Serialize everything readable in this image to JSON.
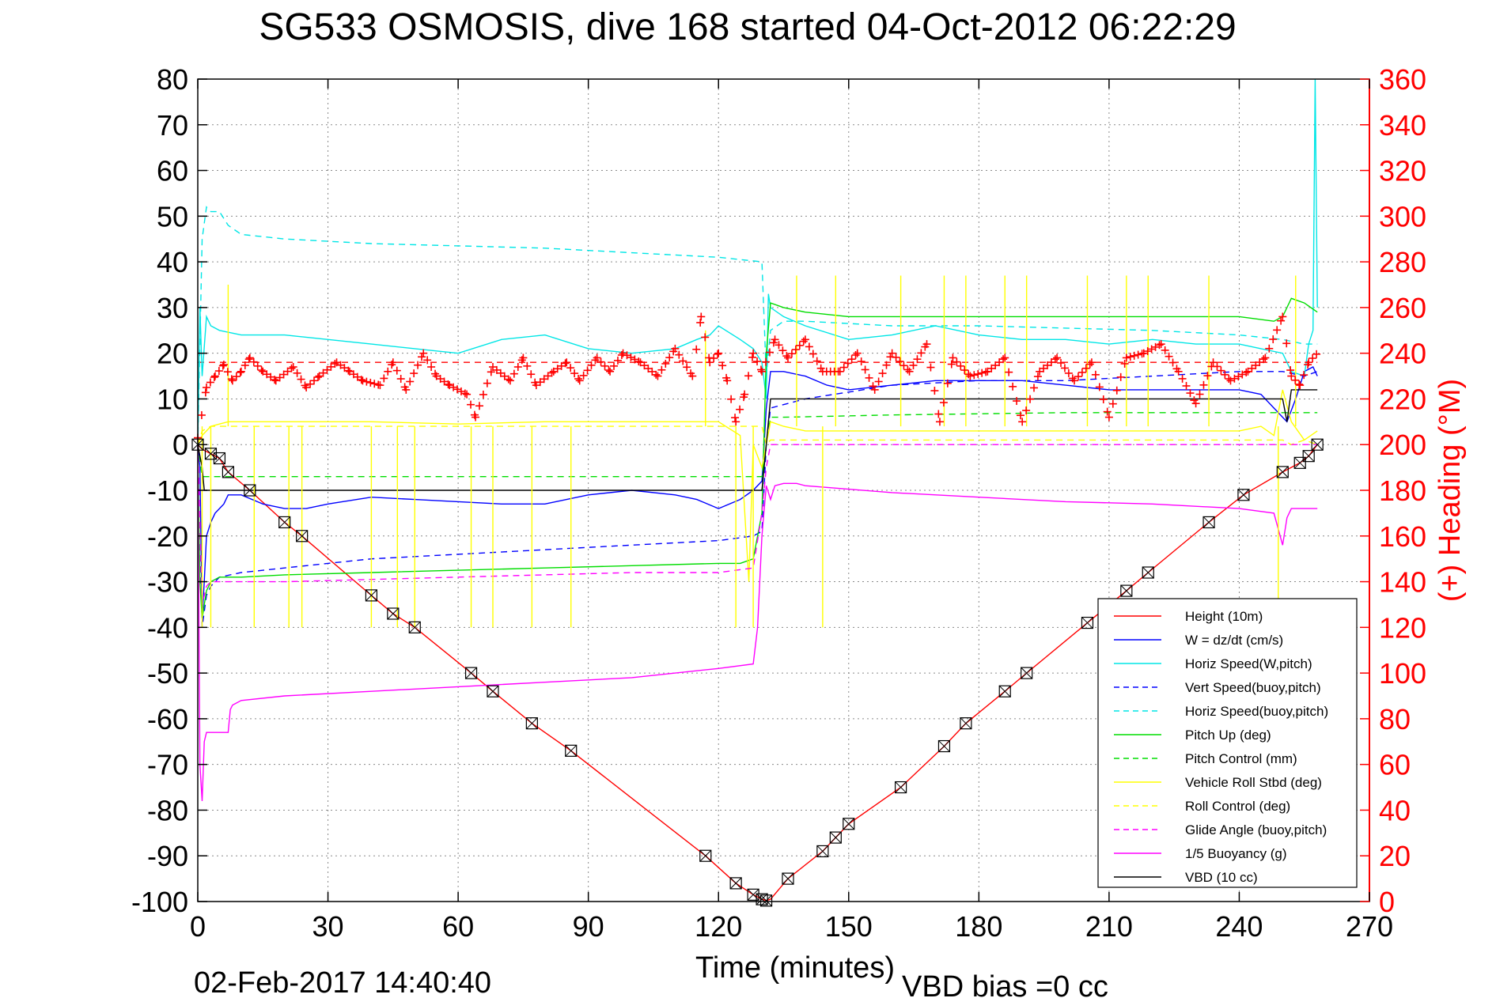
{
  "chart_data": {
    "type": "line",
    "title": "SG533 OSMOSIS, dive 168 started 04-Oct-2012 06:22:29",
    "xlabel": "Time (minutes)",
    "ylabel": "",
    "y2label": "(+) Heading (°M)",
    "xlim": [
      0,
      270
    ],
    "ylim": [
      -100,
      80
    ],
    "y2lim": [
      0,
      360
    ],
    "xticks": [
      "0",
      "30",
      "60",
      "90",
      "120",
      "150",
      "180",
      "210",
      "240",
      "270"
    ],
    "yticks": [
      "80",
      "70",
      "60",
      "50",
      "40",
      "30",
      "20",
      "10",
      "0",
      "-10",
      "-20",
      "-30",
      "-40",
      "-50",
      "-60",
      "-70",
      "-80",
      "-90",
      "-100"
    ],
    "y2ticks": [
      "360",
      "340",
      "320",
      "300",
      "280",
      "260",
      "240",
      "220",
      "200",
      "180",
      "160",
      "140",
      "120",
      "100",
      "80",
      "60",
      "40",
      "20",
      "0"
    ],
    "grid": true,
    "legend_position": "bottom-right",
    "footer_date": "02-Feb-2017 14:40:40",
    "footer_vbd": "VBD bias =0 cc",
    "colors": {
      "red": "#ff0000",
      "blue": "#0000ff",
      "cyan": "#00e6e6",
      "green": "#00dd00",
      "yellow": "#ffff00",
      "magenta": "#ff00ff",
      "black": "#000000"
    },
    "series": [
      {
        "name": "Height (10m)",
        "color": "#ff0000",
        "dash": false,
        "x": [
          0,
          1,
          3,
          5,
          7,
          12,
          20,
          24,
          40,
          45,
          50,
          63,
          68,
          77,
          86,
          117,
          124,
          128,
          130,
          131,
          132,
          136,
          144,
          147,
          150,
          162,
          172,
          177,
          186,
          191,
          205,
          214,
          219,
          233,
          241,
          250,
          254,
          256,
          258
        ],
        "values": [
          0,
          -1,
          -2,
          -3,
          -6,
          -10,
          -17,
          -20,
          -33,
          -37,
          -40,
          -50,
          -54,
          -61,
          -67,
          -90,
          -96,
          -98.5,
          -99.5,
          -99.8,
          -99.5,
          -95,
          -89,
          -86,
          -83,
          -75,
          -66,
          -61,
          -54,
          -50,
          -39,
          -32,
          -28,
          -17,
          -11,
          -6,
          -4,
          -2.5,
          0
        ]
      },
      {
        "name": "W = dz/dt (cm/s)",
        "color": "#0000ff",
        "dash": false,
        "x": [
          0,
          0.5,
          1,
          1.5,
          2,
          3,
          4,
          5,
          6,
          7,
          10,
          15,
          20,
          25,
          30,
          40,
          50,
          60,
          70,
          80,
          90,
          100,
          110,
          115,
          120,
          125,
          128,
          130,
          131,
          132,
          135,
          140,
          145,
          150,
          160,
          170,
          180,
          190,
          200,
          210,
          220,
          230,
          240,
          245,
          248,
          250,
          251,
          253,
          255,
          257,
          258
        ],
        "values": [
          0,
          -5,
          -38,
          -30,
          -20,
          -17,
          -15,
          -14,
          -13,
          -11,
          -11,
          -13,
          -14,
          -14,
          -13,
          -11.5,
          -12,
          -12.5,
          -13,
          -13,
          -11,
          -10,
          -11,
          -12,
          -14,
          -12,
          -10,
          -8,
          8,
          16,
          16,
          15,
          13,
          12,
          13,
          14,
          14,
          14,
          13,
          12,
          12,
          12,
          12,
          11,
          8,
          6,
          5,
          10,
          16,
          17,
          15
        ]
      },
      {
        "name": "Horiz Speed(W,pitch)",
        "color": "#00e6e6",
        "dash": false,
        "x": [
          0,
          0.5,
          1,
          2,
          3,
          5,
          10,
          20,
          30,
          40,
          50,
          60,
          70,
          80,
          90,
          100,
          110,
          115,
          118,
          120,
          125,
          128,
          130,
          131,
          131.5,
          132,
          135,
          140,
          150,
          160,
          170,
          180,
          190,
          200,
          210,
          220,
          230,
          240,
          245,
          250,
          252,
          255,
          256,
          257,
          257.5,
          258
        ],
        "values": [
          0,
          30,
          15,
          28,
          26,
          25,
          24,
          24,
          23,
          22,
          21,
          20,
          23,
          24,
          21,
          20,
          21,
          23,
          24,
          26,
          23,
          21,
          18,
          10,
          33,
          30,
          28,
          26,
          23,
          24,
          26,
          24,
          23,
          23,
          22,
          23,
          22,
          22,
          21,
          20,
          16,
          15,
          22,
          25,
          80,
          30
        ]
      },
      {
        "name": "Vert Speed(buoy,pitch)",
        "color": "#0000ff",
        "dash": true,
        "x": [
          0,
          1,
          2,
          3,
          5,
          10,
          20,
          30,
          40,
          60,
          80,
          100,
          120,
          128,
          130,
          131,
          132,
          140,
          160,
          180,
          200,
          220,
          240,
          250,
          255,
          258
        ],
        "values": [
          0,
          -40,
          -33,
          -31,
          -29,
          -28,
          -27,
          -26,
          -25,
          -24,
          -23,
          -22,
          -21,
          -20,
          -19,
          0,
          8,
          10,
          13,
          14,
          14,
          15,
          16,
          16,
          15,
          16
        ]
      },
      {
        "name": "Horiz Speed(buoy,pitch)",
        "color": "#00e6e6",
        "dash": true,
        "x": [
          0,
          1,
          2,
          3,
          5,
          7,
          10,
          20,
          40,
          60,
          80,
          100,
          120,
          130,
          131,
          132,
          135,
          140,
          160,
          180,
          200,
          220,
          240,
          250,
          255,
          258
        ],
        "values": [
          0,
          45,
          52,
          51,
          51,
          48,
          46,
          45,
          44,
          43.5,
          43,
          42,
          41,
          40,
          15,
          25,
          27,
          27,
          26,
          26,
          25.5,
          25,
          24,
          23,
          22,
          22
        ]
      },
      {
        "name": "Pitch Up (deg)",
        "color": "#00dd00",
        "dash": false,
        "x": [
          0,
          0.5,
          1,
          2,
          3,
          5,
          10,
          20,
          40,
          60,
          80,
          100,
          120,
          125,
          128,
          130,
          131,
          132,
          135,
          140,
          150,
          160,
          180,
          200,
          220,
          240,
          248,
          250,
          252,
          255,
          258
        ],
        "values": [
          0,
          -30,
          -38,
          -32,
          -30,
          -29,
          -29,
          -28.5,
          -28,
          -27.5,
          -27,
          -26.5,
          -26,
          -26,
          -25,
          -15,
          20,
          31,
          30,
          29,
          28,
          28,
          28,
          28,
          28,
          28,
          27,
          28,
          32,
          31,
          29
        ]
      },
      {
        "name": "Pitch Control (mm)",
        "color": "#00dd00",
        "dash": true,
        "x": [
          0,
          1,
          2,
          130,
          131,
          132,
          135,
          160,
          200,
          240,
          250,
          258
        ],
        "values": [
          0,
          -7,
          -7,
          -7,
          0,
          6,
          6,
          6.5,
          7,
          7,
          7,
          7
        ]
      },
      {
        "name": "Vehicle Roll Stbd (deg)",
        "color": "#ffff00",
        "dash": false,
        "x": [
          0,
          1,
          3,
          5,
          7,
          10,
          20,
          40,
          60,
          80,
          100,
          120,
          125,
          127,
          128,
          130,
          131,
          132,
          135,
          140,
          160,
          180,
          200,
          220,
          240,
          245,
          248,
          250,
          252,
          255,
          258
        ],
        "values": [
          0,
          2,
          4,
          4.5,
          5,
          5,
          5,
          5,
          4.5,
          5,
          5,
          5,
          2,
          -30,
          0,
          -5,
          0,
          5,
          4,
          3,
          3,
          3,
          3,
          3,
          3,
          4,
          2,
          12,
          5,
          1,
          3
        ]
      },
      {
        "name": "Roll Control (deg)",
        "color": "#ffff00",
        "dash": true,
        "x": [
          0,
          1,
          3,
          130,
          131,
          132,
          250,
          252,
          255,
          258
        ],
        "values": [
          0,
          3,
          4,
          4,
          0,
          1,
          1,
          0,
          1,
          0
        ]
      },
      {
        "name": "Glide Angle (buoy,pitch)",
        "color": "#ff00ff",
        "dash": true,
        "x": [
          0,
          1,
          2,
          3,
          5,
          10,
          20,
          40,
          60,
          80,
          100,
          120,
          128,
          130,
          131,
          132,
          258
        ],
        "values": [
          0,
          -35,
          -31,
          -30,
          -30,
          -30,
          -30,
          -29.5,
          -29,
          -28.5,
          -28,
          -28,
          -27,
          -15,
          -5,
          0,
          0
        ]
      },
      {
        "name": "1/5 Buoyancy (g)",
        "color": "#ff00ff",
        "dash": false,
        "x": [
          0,
          0.5,
          1,
          1.5,
          2,
          7,
          7.5,
          8,
          10,
          20,
          40,
          60,
          80,
          100,
          120,
          128,
          129,
          130,
          131,
          132,
          133,
          135,
          138,
          140,
          160,
          180,
          200,
          220,
          240,
          248,
          250,
          251,
          252,
          255,
          258
        ],
        "values": [
          0,
          -70,
          -78,
          -65,
          -63,
          -63,
          -58,
          -57,
          -56,
          -55,
          -54,
          -53,
          -52,
          -51,
          -49,
          -48,
          -40,
          -20,
          -9,
          -12,
          -9,
          -8.5,
          -8.5,
          -9,
          -10.5,
          -11.5,
          -12.5,
          -13,
          -14,
          -15,
          -22,
          -16,
          -14,
          -14,
          -14
        ]
      },
      {
        "name": "VBD (10 cc)",
        "color": "#000000",
        "dash": false,
        "x": [
          0,
          1,
          1.5,
          2,
          130,
          131,
          132,
          135,
          250,
          251,
          252,
          258
        ],
        "values": [
          0,
          -5,
          -10,
          -10,
          -10,
          0,
          10,
          10,
          10,
          5,
          12,
          12
        ]
      }
    ],
    "roll_spikes": [
      {
        "x": 1,
        "y": -40
      },
      {
        "x": 3,
        "y": -40
      },
      {
        "x": 7,
        "y": 35
      },
      {
        "x": 13,
        "y": -40
      },
      {
        "x": 21,
        "y": -40
      },
      {
        "x": 24,
        "y": -40
      },
      {
        "x": 40,
        "y": -40
      },
      {
        "x": 46,
        "y": -40
      },
      {
        "x": 50,
        "y": -40
      },
      {
        "x": 63,
        "y": -40
      },
      {
        "x": 68,
        "y": -40
      },
      {
        "x": 77,
        "y": -40
      },
      {
        "x": 86,
        "y": -40
      },
      {
        "x": 117,
        "y": 25
      },
      {
        "x": 124,
        "y": -40
      },
      {
        "x": 128,
        "y": -40
      },
      {
        "x": 138,
        "y": 37
      },
      {
        "x": 144,
        "y": -40
      },
      {
        "x": 147,
        "y": 37
      },
      {
        "x": 162,
        "y": 37
      },
      {
        "x": 172,
        "y": 37
      },
      {
        "x": 177,
        "y": 37
      },
      {
        "x": 186,
        "y": 37
      },
      {
        "x": 191,
        "y": 37
      },
      {
        "x": 205,
        "y": 37
      },
      {
        "x": 214,
        "y": 37
      },
      {
        "x": 219,
        "y": 37
      },
      {
        "x": 233,
        "y": 37
      },
      {
        "x": 249,
        "y": -40
      },
      {
        "x": 253,
        "y": 37
      }
    ],
    "heading": {
      "name": "Heading",
      "color": "#ff0000",
      "x": [
        0,
        2,
        4,
        6,
        8,
        10,
        12,
        15,
        18,
        22,
        25,
        28,
        32,
        35,
        38,
        42,
        45,
        48,
        52,
        55,
        58,
        62,
        64,
        68,
        72,
        75,
        78,
        82,
        85,
        88,
        92,
        95,
        98,
        102,
        106,
        110,
        114,
        116,
        118,
        120,
        122,
        124,
        126,
        128,
        130,
        133,
        136,
        140,
        144,
        148,
        152,
        156,
        160,
        164,
        168,
        171,
        174,
        178,
        182,
        186,
        190,
        194,
        198,
        202,
        206,
        210,
        214,
        218,
        222,
        226,
        230,
        234,
        238,
        242,
        246,
        250,
        252,
        254,
        256,
        258
      ],
      "values": [
        203,
        225,
        230,
        235,
        228,
        232,
        238,
        232,
        228,
        234,
        225,
        230,
        236,
        232,
        228,
        226,
        236,
        224,
        240,
        230,
        226,
        222,
        212,
        234,
        228,
        238,
        226,
        232,
        236,
        228,
        238,
        232,
        240,
        236,
        230,
        242,
        230,
        256,
        236,
        240,
        228,
        210,
        222,
        240,
        232,
        246,
        238,
        246,
        232,
        232,
        240,
        224,
        240,
        232,
        244,
        210,
        238,
        230,
        232,
        238,
        210,
        232,
        238,
        228,
        236,
        212,
        238,
        240,
        244,
        232,
        218,
        236,
        228,
        232,
        238,
        256,
        230,
        226,
        236,
        240
      ]
    },
    "heading_command": {
      "name": "Heading command",
      "color": "#ff0000",
      "value": 236
    },
    "depth_markers_x": [
      0,
      3,
      5,
      7,
      12,
      20,
      24,
      40,
      45,
      50,
      63,
      68,
      77,
      86,
      117,
      124,
      128,
      130,
      131,
      136,
      144,
      147,
      150,
      162,
      172,
      177,
      186,
      191,
      205,
      214,
      219,
      233,
      241,
      250,
      254,
      256,
      258
    ]
  }
}
